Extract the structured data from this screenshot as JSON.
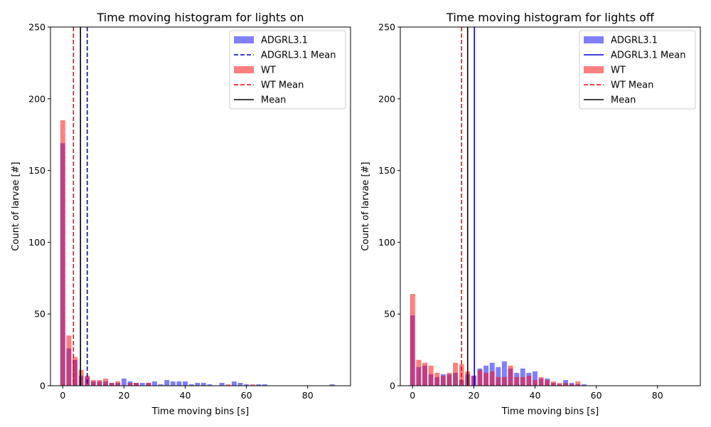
{
  "chart_data": [
    {
      "type": "bar",
      "title": "Time moving histogram for lights on",
      "xlabel": "Time moving bins [s]",
      "ylabel": "Count of larvae [#]",
      "xlim": [
        -4,
        94
      ],
      "ylim": [
        0,
        250
      ],
      "xticks": [
        "0",
        "20",
        "40",
        "60",
        "80"
      ],
      "yticks": [
        "0",
        "50",
        "100",
        "150",
        "200",
        "250"
      ],
      "bin_width": 2,
      "legend_position": "top-right",
      "series": [
        {
          "name": "ADGRL3.1",
          "color": "#0000ff",
          "opacity": 0.5,
          "bins": [
            0,
            2,
            4,
            6,
            8,
            10,
            12,
            14,
            16,
            18,
            20,
            22,
            24,
            26,
            28,
            30,
            32,
            34,
            36,
            38,
            40,
            42,
            44,
            46,
            48,
            52,
            56,
            58,
            60,
            64,
            66,
            88
          ],
          "values": [
            169,
            26,
            18,
            7,
            6,
            3,
            3,
            3,
            2,
            2,
            5,
            3,
            2,
            2,
            2,
            3,
            1,
            4,
            3,
            3,
            3,
            1,
            2,
            2,
            1,
            2,
            3,
            2,
            1,
            1,
            1,
            1
          ]
        },
        {
          "name": "WT",
          "color": "#ff0000",
          "opacity": 0.5,
          "bins": [
            0,
            2,
            4,
            6,
            8,
            10,
            12,
            14,
            16,
            18,
            22,
            24,
            28,
            54,
            62
          ],
          "values": [
            185,
            35,
            20,
            11,
            7,
            4,
            4,
            5,
            2,
            3,
            2,
            2,
            2,
            1,
            1
          ]
        }
      ],
      "lines": [
        {
          "name": "ADGRL3.1 Mean",
          "x": 8,
          "color": "#0000cc",
          "style": "dashed"
        },
        {
          "name": "WT Mean",
          "x": 3.5,
          "color": "#ff0000",
          "style": "dashed"
        },
        {
          "name": "Mean",
          "x": 5.8,
          "color": "#000000",
          "style": "solid"
        }
      ],
      "legend": [
        {
          "label": "ADGRL3.1",
          "kind": "patch",
          "color": "#0000ff",
          "opacity": 0.5
        },
        {
          "label": "ADGRL3.1 Mean",
          "kind": "line",
          "color": "#0000cc",
          "style": "dashed"
        },
        {
          "label": "WT",
          "kind": "patch",
          "color": "#ff0000",
          "opacity": 0.5
        },
        {
          "label": "WT Mean",
          "kind": "line",
          "color": "#ff0000",
          "style": "dashed"
        },
        {
          "label": "Mean",
          "kind": "line",
          "color": "#000000",
          "style": "solid"
        }
      ]
    },
    {
      "type": "bar",
      "title": "Time moving histogram for lights off",
      "xlabel": "Time moving bins [s]",
      "ylabel": "Count of larvae [#]",
      "xlim": [
        -4,
        94
      ],
      "ylim": [
        0,
        250
      ],
      "xticks": [
        "0",
        "20",
        "40",
        "60",
        "80"
      ],
      "yticks": [
        "0",
        "50",
        "100",
        "150",
        "200",
        "250"
      ],
      "bin_width": 2,
      "legend_position": "top-right",
      "series": [
        {
          "name": "ADGRL3.1",
          "color": "#0000ff",
          "opacity": 0.5,
          "bins": [
            0,
            2,
            4,
            6,
            8,
            10,
            12,
            14,
            16,
            18,
            20,
            22,
            24,
            26,
            28,
            30,
            32,
            34,
            36,
            38,
            40,
            42,
            44,
            46,
            48,
            50,
            52,
            54,
            56
          ],
          "values": [
            49,
            13,
            14,
            8,
            6,
            8,
            8,
            9,
            4,
            8,
            7,
            12,
            14,
            16,
            13,
            17,
            12,
            9,
            12,
            9,
            10,
            5,
            5,
            2,
            1,
            4,
            2,
            1,
            1
          ]
        },
        {
          "name": "WT",
          "color": "#ff0000",
          "opacity": 0.5,
          "bins": [
            0,
            2,
            4,
            6,
            8,
            10,
            12,
            14,
            16,
            18,
            20,
            22,
            24,
            26,
            28,
            30,
            32,
            34,
            36,
            38,
            40,
            42,
            44,
            46,
            48,
            50,
            52,
            54
          ],
          "values": [
            64,
            18,
            16,
            14,
            9,
            7,
            9,
            16,
            15,
            10,
            7,
            11,
            9,
            10,
            6,
            6,
            14,
            6,
            6,
            7,
            4,
            6,
            4,
            3,
            2,
            2,
            1,
            3
          ]
        }
      ],
      "lines": [
        {
          "name": "ADGRL3.1 Mean",
          "x": 20.2,
          "color": "#0000cc",
          "style": "solid"
        },
        {
          "name": "WT Mean",
          "x": 16,
          "color": "#ff0000",
          "style": "dashed"
        },
        {
          "name": "Mean",
          "x": 18,
          "color": "#000000",
          "style": "solid"
        }
      ],
      "legend": [
        {
          "label": "ADGRL3.1",
          "kind": "patch",
          "color": "#0000ff",
          "opacity": 0.5
        },
        {
          "label": "ADGRL3.1 Mean",
          "kind": "line",
          "color": "#0000cc",
          "style": "solid"
        },
        {
          "label": "WT",
          "kind": "patch",
          "color": "#ff0000",
          "opacity": 0.5
        },
        {
          "label": "WT Mean",
          "kind": "line",
          "color": "#ff0000",
          "style": "dashed"
        },
        {
          "label": "Mean",
          "kind": "line",
          "color": "#000000",
          "style": "solid"
        }
      ]
    }
  ]
}
